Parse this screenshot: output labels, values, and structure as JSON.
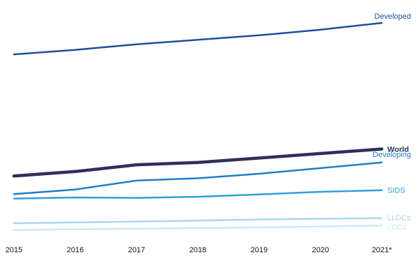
{
  "chart_data": {
    "type": "line",
    "title": "",
    "xlabel": "",
    "ylabel": "",
    "categories": [
      "2015",
      "2016",
      "2017",
      "2018",
      "2019",
      "2020",
      "2021*"
    ],
    "ylim": [
      0,
      100
    ],
    "grid": false,
    "legend": "inline labels at line ends",
    "series": [
      {
        "name": "Developed",
        "color": "#1f4e9c",
        "bold": false,
        "values": [
          82,
          84,
          86.5,
          88.5,
          90.5,
          93,
          96
        ]
      },
      {
        "name": "World",
        "color": "#2f2f5f",
        "bold": true,
        "values": [
          28,
          30,
          33,
          34,
          36,
          38,
          40
        ]
      },
      {
        "name": "Developing",
        "color": "#1f7ec2",
        "bold": false,
        "values": [
          20,
          22,
          26,
          27,
          29,
          31.5,
          34
        ]
      },
      {
        "name": "SIDS",
        "color": "#2f9fd8",
        "bold": false,
        "values": [
          18,
          18.5,
          18.3,
          18.8,
          19.8,
          21,
          21.7
        ]
      },
      {
        "name": "LLDCs",
        "color": "#a9d8ef",
        "bold": false,
        "values": [
          7,
          7.4,
          7.8,
          8.2,
          8.7,
          9,
          9.3
        ]
      },
      {
        "name": "LDCs",
        "color": "#cfe8f6",
        "bold": false,
        "values": [
          4,
          4.4,
          4.6,
          4.9,
          5.2,
          5.6,
          6
        ]
      }
    ]
  }
}
